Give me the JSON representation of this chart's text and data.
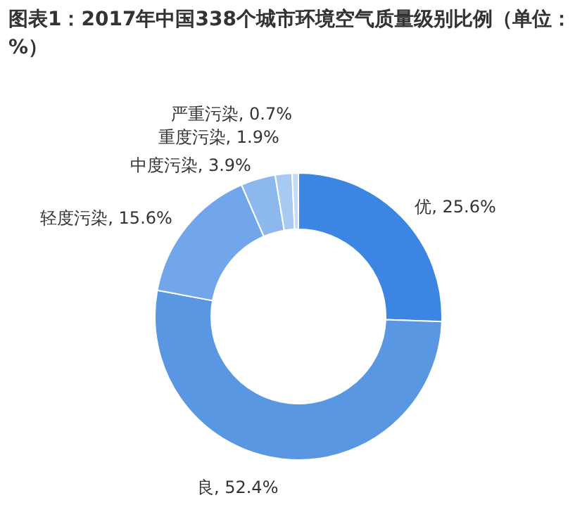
{
  "chart_data": {
    "type": "donut",
    "title": "图表1：2017年中国338个城市环境空气质量级别比例（单位：%）",
    "categories": [
      "优",
      "良",
      "轻度污染",
      "中度污染",
      "重度污染",
      "严重污染"
    ],
    "values": [
      25.6,
      52.4,
      15.6,
      3.9,
      1.9,
      0.7
    ],
    "value_labels": [
      "25.6%",
      "52.4%",
      "15.6%",
      "3.9%",
      "1.9%",
      "0.7%"
    ],
    "colors": [
      "#3d85e3",
      "#5a97e3",
      "#72a6ea",
      "#8db8ee",
      "#a8c9f1",
      "#c6dcf6"
    ],
    "legend": false
  }
}
